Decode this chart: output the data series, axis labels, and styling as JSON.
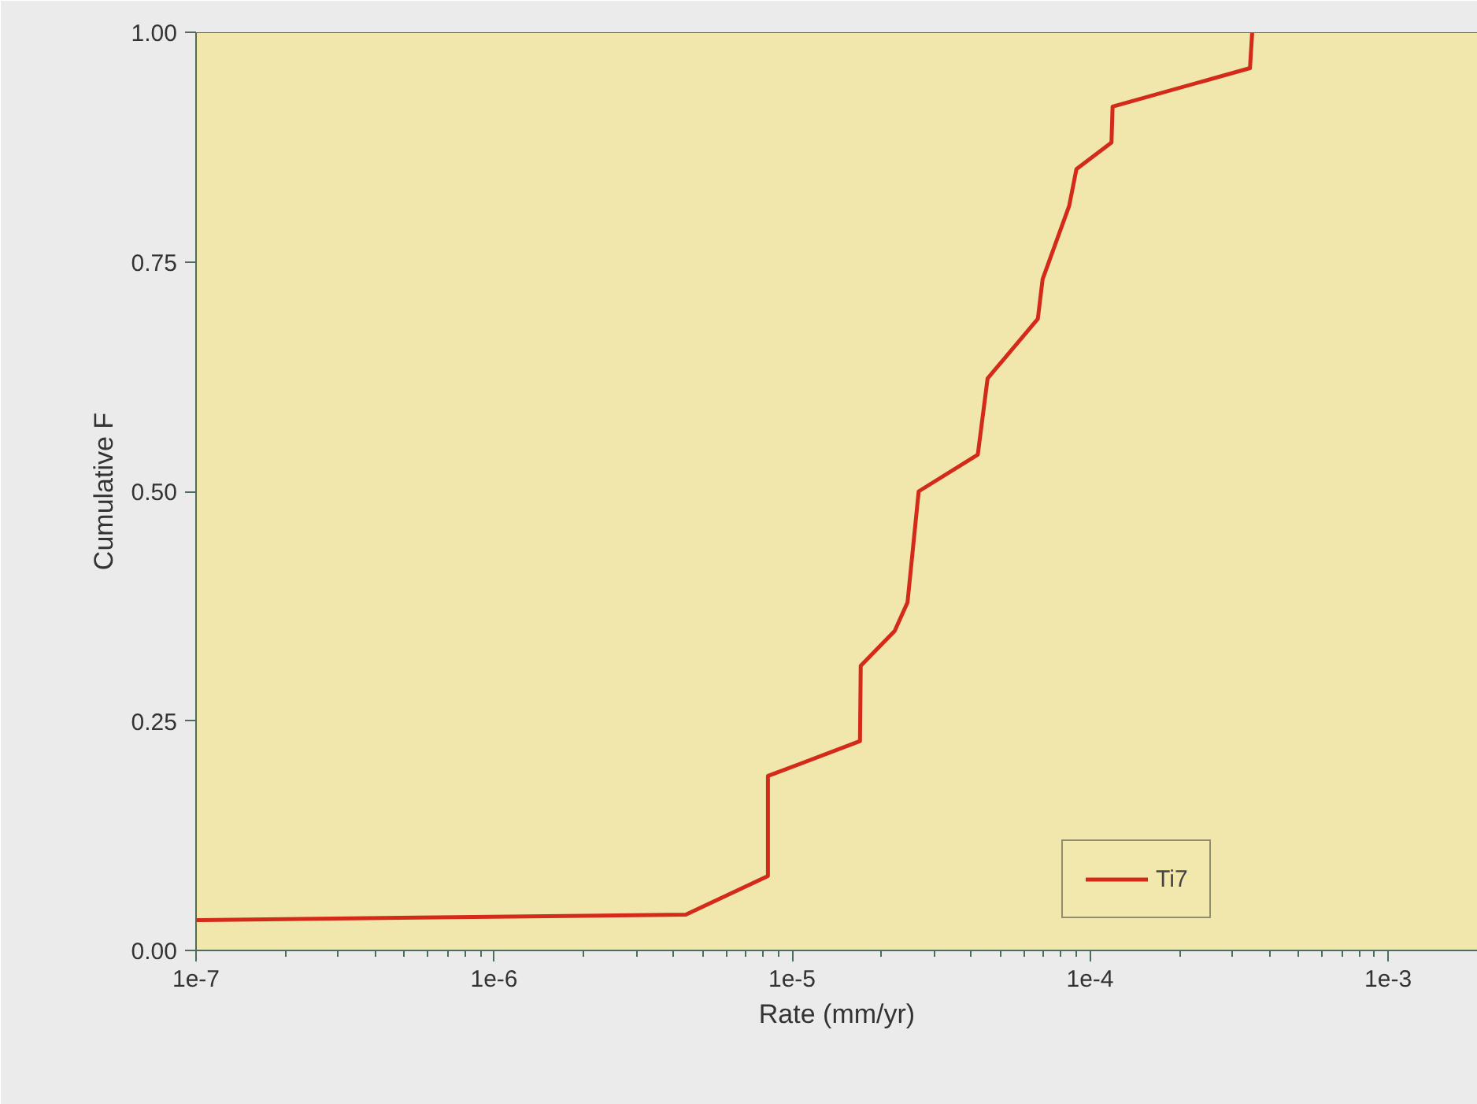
{
  "chart_data": {
    "type": "line",
    "xlabel": "Rate (mm/yr)",
    "ylabel": "Cumulative F",
    "log": "x",
    "x": [
      1e-07,
      4.4e-06,
      8.3e-06,
      8.3e-06,
      1.69e-05,
      1.7e-05,
      2.21e-05,
      2.44e-05,
      2.66e-05,
      4.2e-05,
      4.53e-05,
      6.68e-05,
      6.93e-05,
      8.51e-05,
      9e-05,
      0.000118,
      0.000119,
      0.000344,
      0.00035
    ],
    "series": [
      {
        "name": "Ti7",
        "color": "#d42a1a",
        "values": [
          0.033,
          0.039,
          0.081,
          0.19,
          0.228,
          0.31,
          0.348,
          0.379,
          0.5,
          0.54,
          0.623,
          0.688,
          0.731,
          0.811,
          0.851,
          0.88,
          0.919,
          0.961,
          1.0
        ]
      }
    ],
    "xlim": [
      1e-07,
      0.002
    ],
    "xticks": [
      {
        "value": 1e-07,
        "label": "1e-7"
      },
      {
        "value": 1e-06,
        "label": "1e-6"
      },
      {
        "value": 1e-05,
        "label": "1e-5"
      },
      {
        "value": 0.0001,
        "label": "1e-4"
      },
      {
        "value": 0.001,
        "label": "1e-3"
      }
    ],
    "ylim": [
      0,
      1
    ],
    "yticks": [
      {
        "value": 0,
        "label": "0.00"
      },
      {
        "value": 0.25,
        "label": "0.25"
      },
      {
        "value": 0.5,
        "label": "0.50"
      },
      {
        "value": 0.75,
        "label": "0.75"
      },
      {
        "value": 1,
        "label": "1.00"
      }
    ],
    "grid": false,
    "legend": "bottom right",
    "line_style": "solid",
    "marker": "none"
  }
}
